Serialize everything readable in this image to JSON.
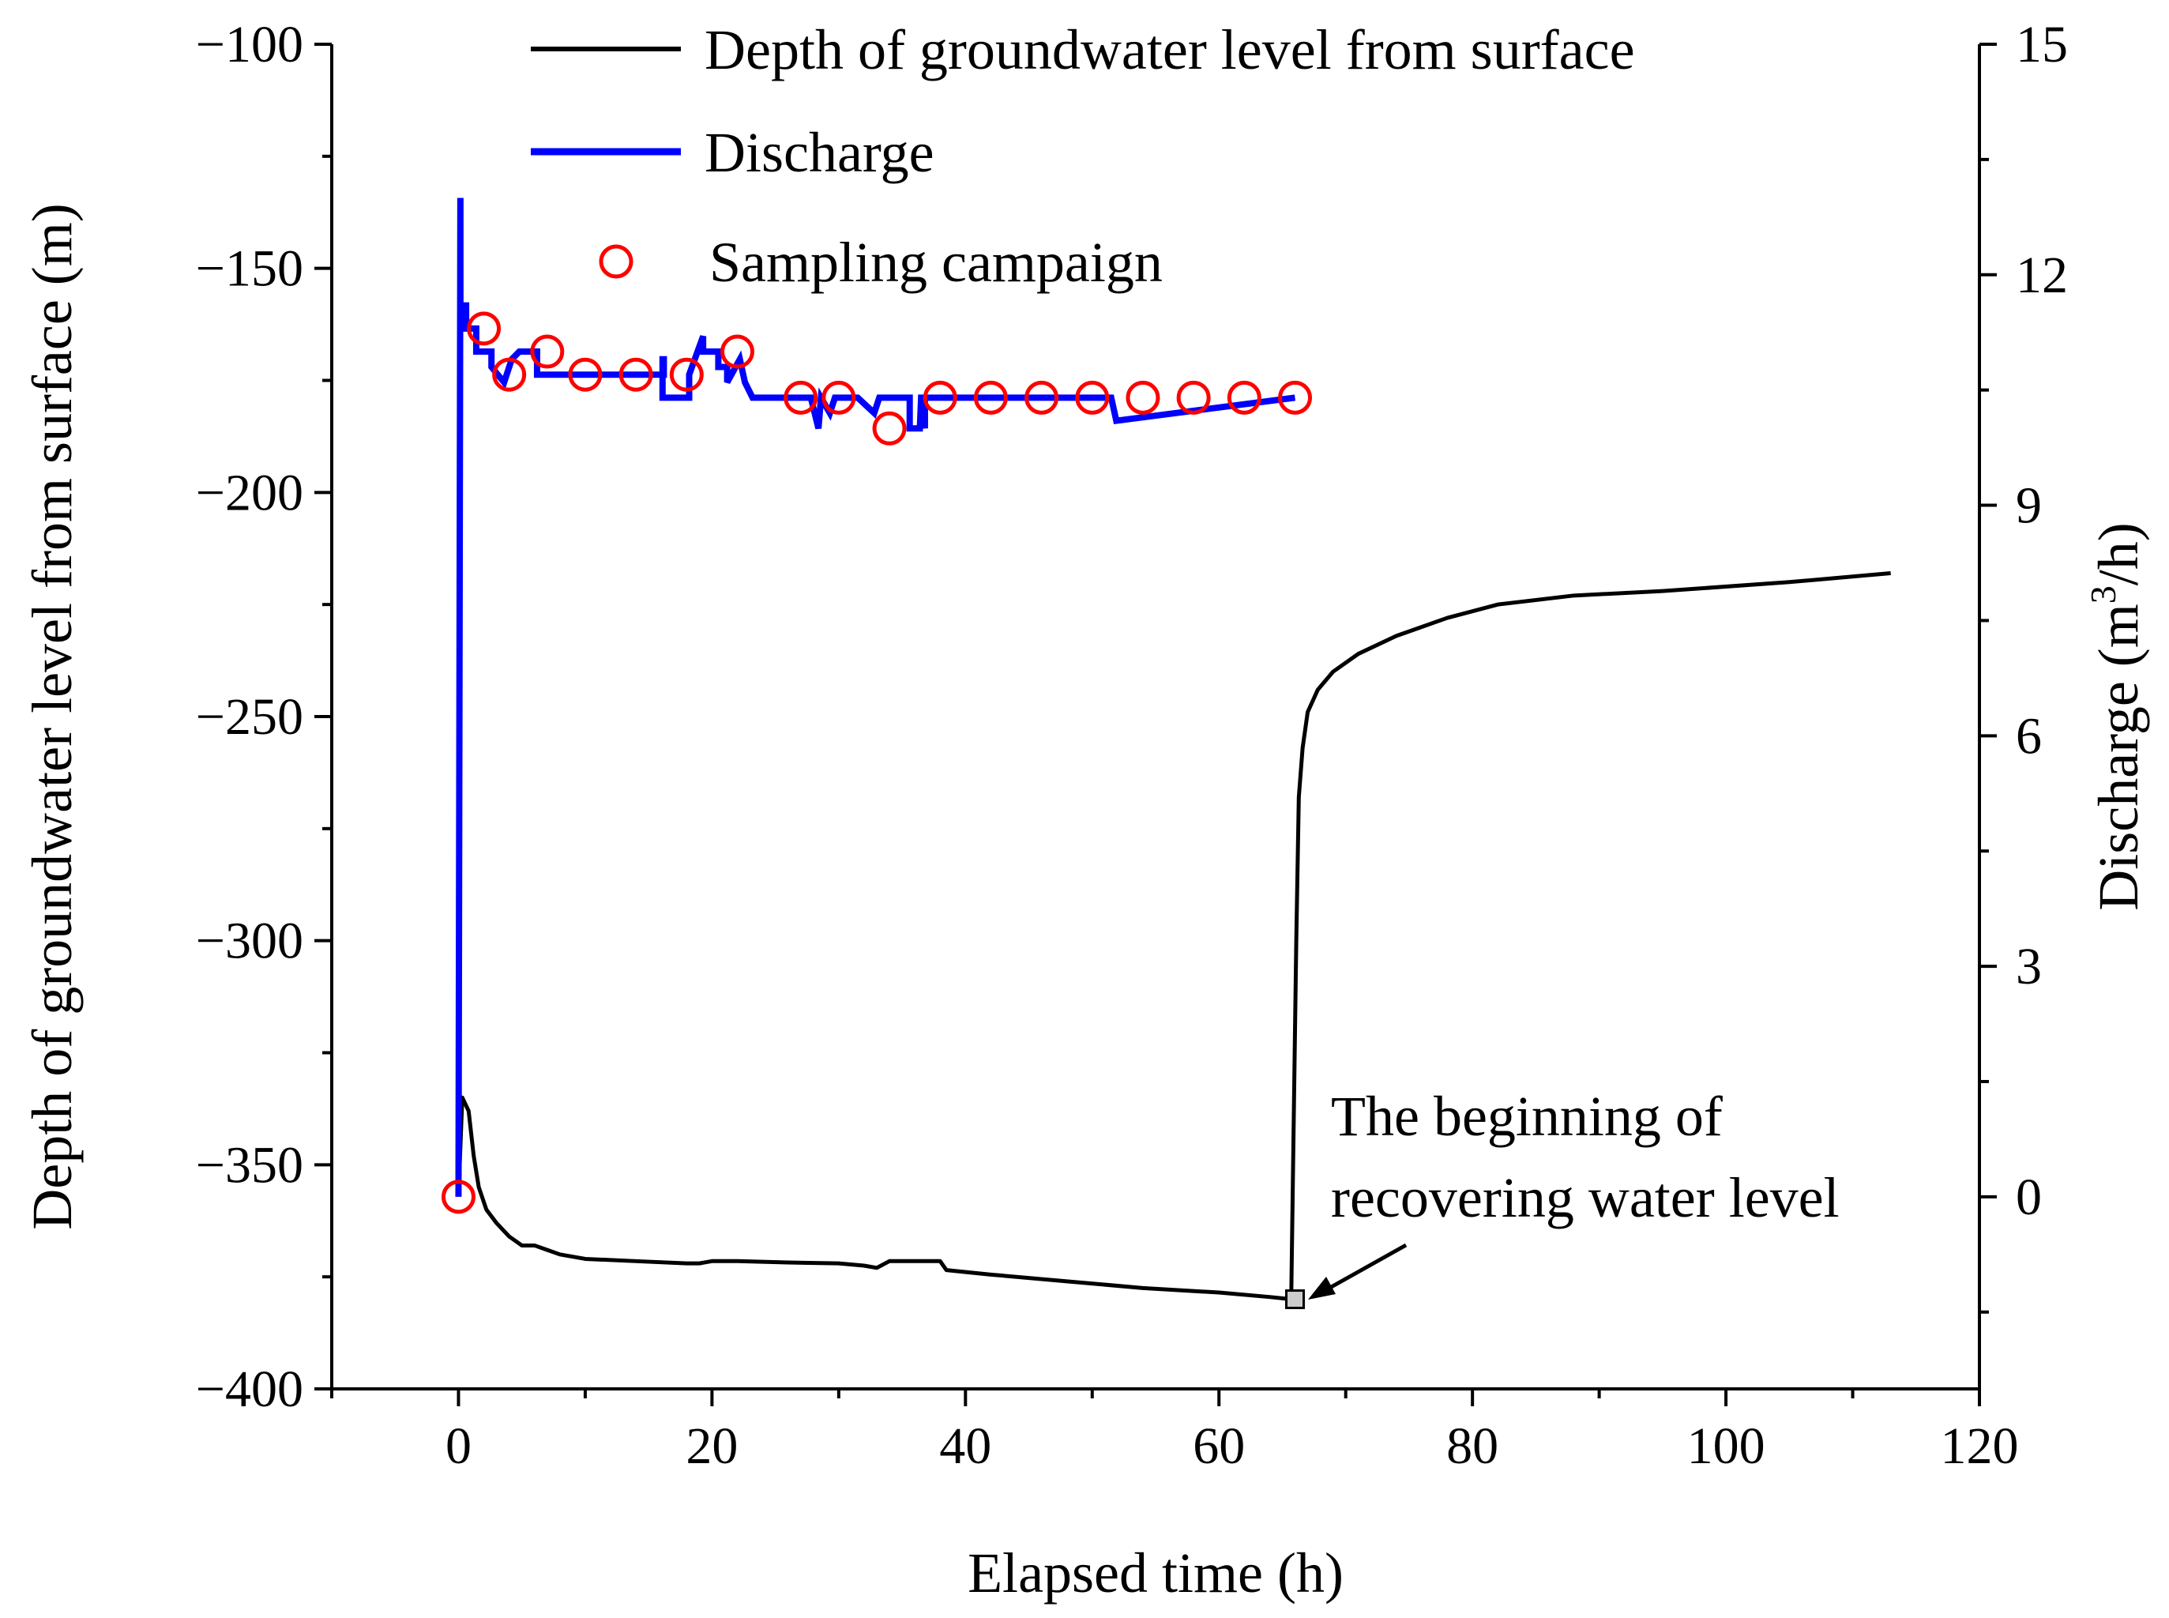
{
  "chart_data": {
    "type": "line",
    "title": "",
    "xlabel": "Elapsed time (h)",
    "ylabel_left": "Depth of groundwater level from surface (m)",
    "ylabel_right_prefix": "Discharge (m",
    "ylabel_right_sup": "3",
    "ylabel_right_suffix": "/h)",
    "xlim": [
      -10,
      120
    ],
    "ylim_left": [
      -400,
      -100
    ],
    "ylim_right": [
      -2.5,
      15
    ],
    "x_ticks": [
      0,
      20,
      40,
      60,
      80,
      100,
      120
    ],
    "x_tick_labels": [
      "0",
      "20",
      "40",
      "60",
      "80",
      "100",
      "120"
    ],
    "y_left_ticks": [
      -100,
      -150,
      -200,
      -250,
      -300,
      -350,
      -400
    ],
    "y_left_tick_labels": [
      "−100",
      "−150",
      "−200",
      "−250",
      "−300",
      "−350",
      "−400"
    ],
    "y_right_ticks": [
      15,
      12,
      9,
      6,
      3,
      0
    ],
    "y_right_tick_labels": [
      "15",
      "12",
      "9",
      "6",
      "3",
      "0"
    ],
    "grid": false,
    "legend_position": "top-center",
    "colors": {
      "depth": "#000000",
      "discharge": "#0000ff",
      "sampling": "#ff0000",
      "marker_fill": "#cccccc"
    },
    "series": [
      {
        "name": "Depth of groundwater level from surface",
        "axis": "left",
        "style": "line",
        "x": [
          0,
          0.3,
          0.8,
          1.2,
          1.6,
          2.2,
          3,
          4,
          5,
          6,
          7,
          8,
          10,
          14,
          18,
          19,
          20,
          22,
          26,
          30,
          32,
          33,
          34,
          36,
          38,
          38.5,
          42,
          48,
          54,
          60,
          64,
          65.7,
          65.9,
          66.1,
          66.3,
          66.6,
          67,
          67.8,
          69,
          71,
          74,
          78,
          82,
          88,
          95,
          105,
          113
        ],
        "y": [
          -357,
          -335,
          -338,
          -348,
          -355,
          -360,
          -363,
          -366,
          -368,
          -368,
          -369,
          -370,
          -371,
          -371.5,
          -372,
          -372,
          -371.5,
          -371.5,
          -371.8,
          -372,
          -372.5,
          -373,
          -371.5,
          -371.5,
          -371.5,
          -373.5,
          -374.5,
          -376,
          -377.5,
          -378.5,
          -379.5,
          -380,
          -340,
          -300,
          -268,
          -257,
          -249,
          -244,
          -240,
          -236,
          -232,
          -228,
          -225,
          -223,
          -222,
          -220,
          -218
        ]
      },
      {
        "name": "Discharge",
        "axis": "right",
        "style": "line",
        "x": [
          0,
          0.15,
          0.15,
          0.6,
          0.6,
          1.4,
          1.4,
          2.6,
          2.6,
          3.6,
          4.2,
          4.8,
          5.2,
          6.2,
          6.2,
          16.2,
          16.2,
          16.1,
          16.1,
          18.2,
          18.2,
          19.3,
          19.3,
          20.5,
          20.5,
          21.2,
          21.2,
          22.2,
          22.6,
          23.2,
          27.8,
          28.1,
          28.4,
          28.6,
          29.3,
          29.7,
          31.5,
          32.8,
          33.2,
          35.6,
          35.6,
          36.4,
          36.5,
          36.6,
          36.8,
          36.8,
          51.5,
          51.9,
          66
        ],
        "y": [
          0,
          13,
          11.6,
          11.6,
          11.3,
          11.3,
          11.0,
          11.0,
          10.8,
          10.6,
          10.9,
          11.0,
          11.0,
          11.0,
          10.7,
          10.7,
          10.9,
          10.9,
          10.4,
          10.4,
          10.7,
          11.2,
          11.0,
          11.0,
          10.8,
          10.8,
          10.6,
          10.9,
          10.6,
          10.4,
          10.4,
          10.2,
          10.0,
          10.4,
          10.2,
          10.4,
          10.4,
          10.2,
          10.4,
          10.4,
          10.0,
          10.0,
          10.4,
          10.4,
          10.0,
          10.4,
          10.4,
          10.1,
          10.4
        ]
      },
      {
        "name": "Sampling campaign",
        "axis": "right",
        "style": "marker",
        "x": [
          0,
          2,
          4,
          7,
          10,
          14,
          18,
          22,
          27,
          30,
          34,
          38,
          42,
          46,
          50,
          54,
          58,
          62,
          66
        ],
        "y": [
          0,
          11.3,
          10.7,
          11.0,
          10.7,
          10.7,
          10.7,
          11.0,
          10.4,
          10.4,
          10.0,
          10.4,
          10.4,
          10.4,
          10.4,
          10.4,
          10.4,
          10.4,
          10.4
        ]
      }
    ],
    "annotation": {
      "line1": "The beginning of",
      "line2": "recovering water level",
      "x": 66,
      "y": -380
    }
  }
}
